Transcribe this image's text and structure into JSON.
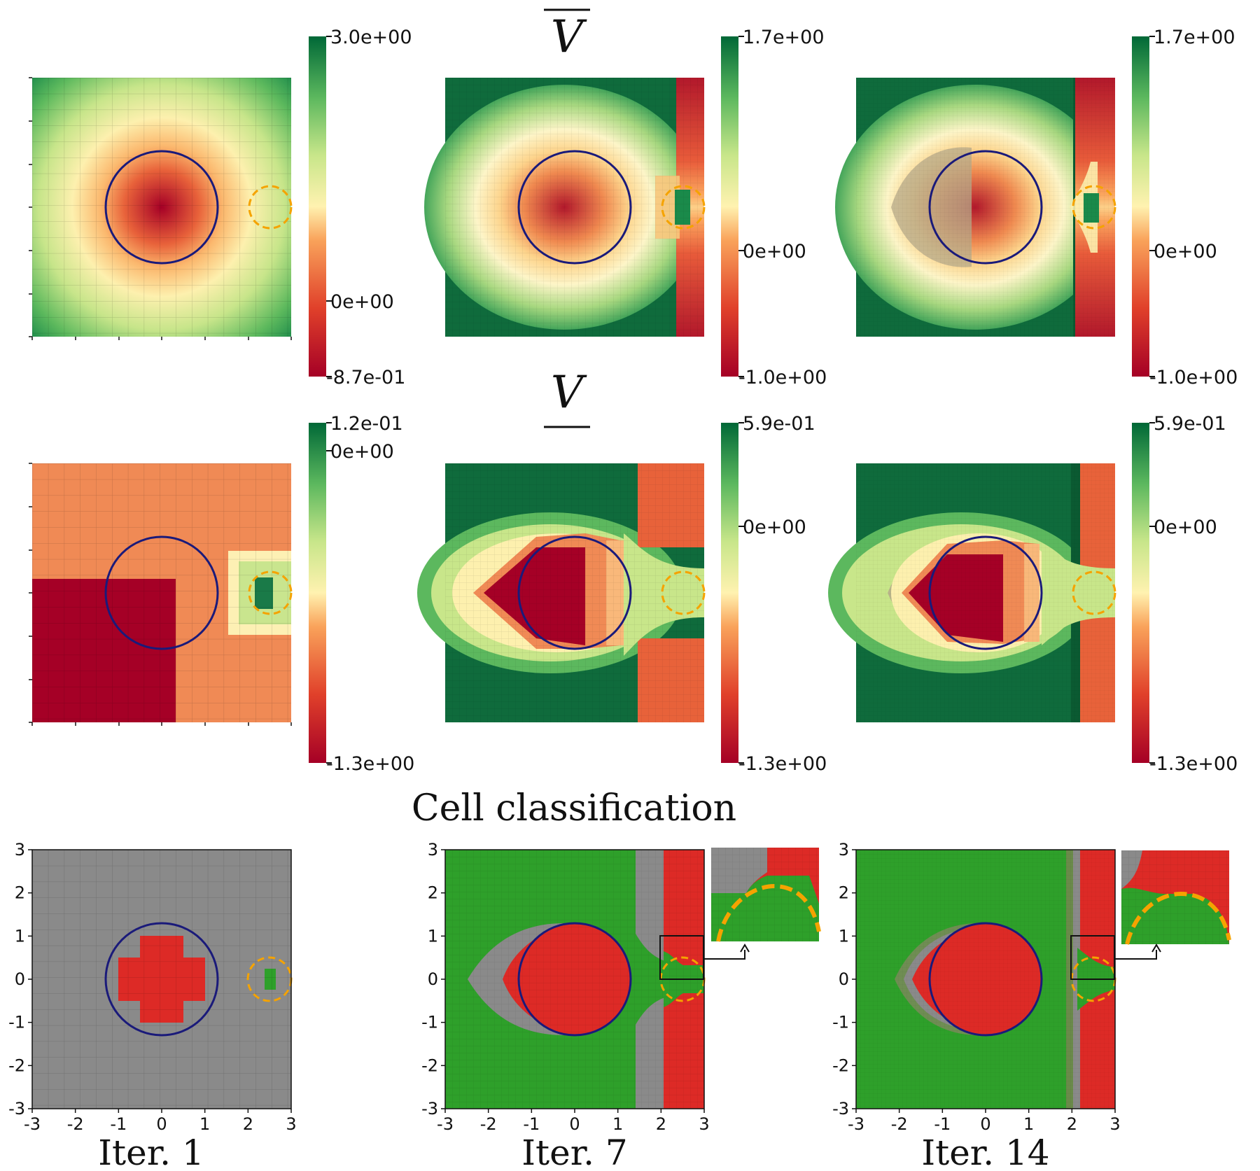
{
  "row_titles": {
    "upper": "V",
    "lower": "V",
    "classification": "Cell classification"
  },
  "columns": [
    {
      "label": "Iter. 1"
    },
    {
      "label": "Iter. 7"
    },
    {
      "label": "Iter. 14"
    }
  ],
  "colors": {
    "circle": "#1a1a7a",
    "target": "#f5a300",
    "class_red": "#dd2a26",
    "class_green": "#2ea02a",
    "class_gray": "#8a8a8a"
  },
  "chart_data": [
    {
      "type": "heatmap",
      "row": "upper",
      "iteration": "Iter. 1",
      "colorbar": {
        "max": "3.0e+00",
        "zero": "0e+00",
        "min": "-8.7e-01"
      }
    },
    {
      "type": "heatmap",
      "row": "upper",
      "iteration": "Iter. 7",
      "colorbar": {
        "max": "1.7e+00",
        "zero": "0e+00",
        "min": "-1.0e+00"
      }
    },
    {
      "type": "heatmap",
      "row": "upper",
      "iteration": "Iter. 14",
      "colorbar": {
        "max": "1.7e+00",
        "zero": "0e+00",
        "min": "-1.0e+00"
      }
    },
    {
      "type": "heatmap",
      "row": "lower",
      "iteration": "Iter. 1",
      "colorbar": {
        "max": "1.2e-01",
        "zero": "0e+00",
        "min": "-1.3e+00"
      }
    },
    {
      "type": "heatmap",
      "row": "lower",
      "iteration": "Iter. 7",
      "colorbar": {
        "max": "5.9e-01",
        "zero": "0e+00",
        "min": "-1.3e+00"
      }
    },
    {
      "type": "heatmap",
      "row": "lower",
      "iteration": "Iter. 14",
      "colorbar": {
        "max": "5.9e-01",
        "zero": "0e+00",
        "min": "-1.3e+00"
      }
    },
    {
      "type": "heatmap",
      "row": "classification",
      "iteration": "Iter. 1",
      "xlim": [
        -3,
        3
      ],
      "ylim": [
        -3,
        3
      ],
      "xticks": [
        "-3",
        "-2",
        "-1",
        "0",
        "1",
        "2",
        "3"
      ],
      "yticks": [
        "-3",
        "-2",
        "-1",
        "0",
        "1",
        "2",
        "3"
      ]
    },
    {
      "type": "heatmap",
      "row": "classification",
      "iteration": "Iter. 7",
      "xlim": [
        -3,
        3
      ],
      "ylim": [
        -3,
        3
      ],
      "xticks": [
        "-3",
        "-2",
        "-1",
        "0",
        "1",
        "2",
        "3"
      ],
      "yticks": [
        "-3",
        "-2",
        "-1",
        "0",
        "1",
        "2",
        "3"
      ]
    },
    {
      "type": "heatmap",
      "row": "classification",
      "iteration": "Iter. 14",
      "xlim": [
        -3,
        3
      ],
      "ylim": [
        -3,
        3
      ],
      "xticks": [
        "-3",
        "-2",
        "-1",
        "0",
        "1",
        "2",
        "3"
      ],
      "yticks": [
        "-3",
        "-2",
        "-1",
        "0",
        "1",
        "2",
        "3"
      ]
    }
  ],
  "shapes": {
    "obstacle": {
      "center": [
        0,
        0
      ],
      "radius": 1.3
    },
    "target": {
      "center": [
        2.5,
        0
      ],
      "radius": 0.55
    }
  }
}
